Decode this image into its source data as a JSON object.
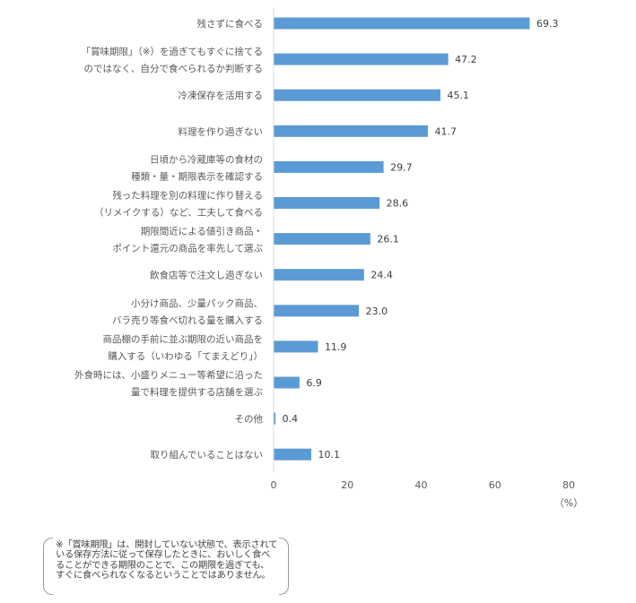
{
  "chart_data": {
    "type": "bar",
    "orientation": "horizontal",
    "categories": [
      [
        "残さずに食べる"
      ],
      [
        "「賞味期限」（※）を過ぎてもすぐに捨てる",
        "のではなく、自分で食べられるか判断する"
      ],
      [
        "冷凍保存を活用する"
      ],
      [
        "料理を作り過ぎない"
      ],
      [
        "日頃から冷蔵庫等の食材の",
        "種類・量・期限表示を確認する"
      ],
      [
        "残った料理を別の料理に作り替える",
        "（リメイクする）など、工夫して食べる"
      ],
      [
        "期限間近による値引き商品・",
        "ポイント還元の商品を率先して選ぶ"
      ],
      [
        "飲食店等で注文し過ぎない"
      ],
      [
        "小分け商品、少量パック商品、",
        "バラ売り等食べ切れる量を購入する"
      ],
      [
        "商品棚の手前に並ぶ期限の近い商品を",
        "購入する（いわゆる「てまえどり」）"
      ],
      [
        "外食時には、小盛りメニュー等希望に沿った",
        "量で料理を提供する店舗を選ぶ"
      ],
      [
        "その他"
      ],
      [
        "取り組んでいることはない"
      ]
    ],
    "values": [
      69.3,
      47.2,
      45.1,
      41.7,
      29.7,
      28.6,
      26.1,
      24.4,
      23.0,
      11.9,
      6.9,
      0.4,
      10.1
    ],
    "value_labels": [
      "69.3",
      "47.2",
      "45.1",
      "41.7",
      "29.7",
      "28.6",
      "26.1",
      "24.4",
      "23.0",
      "11.9",
      "6.9",
      "0.4",
      "10.1"
    ],
    "xlim": [
      0,
      80
    ],
    "xticks": [
      "0",
      "20",
      "40",
      "60",
      "80"
    ],
    "xunit": "（%）",
    "bar_color": "#5B9BD5",
    "grid": false
  },
  "note": "※「賞味期限」は、開封していない状態で、表示されている保存方法に従って保存したときに、おいしく食べることができる期限のことで、この期限を過ぎても、すぐに食べられなくなるということではありません。"
}
